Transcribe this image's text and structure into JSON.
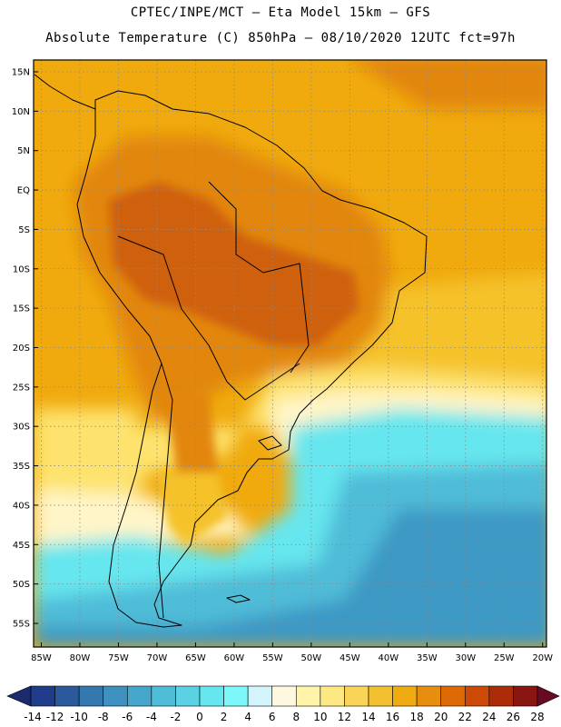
{
  "header": {
    "line1": "CPTEC/INPE/MCT –  Eta Model 15km – GFS",
    "line2": "Absolute Temperature (C) 850hPa – 08/10/2020 12UTC fct=97h"
  },
  "map": {
    "lon_range": [
      -86,
      -19.5
    ],
    "lat_range": [
      -58,
      16.5
    ],
    "lat_ticks": [
      {
        "value": 15,
        "label": "15N"
      },
      {
        "value": 10,
        "label": "10N"
      },
      {
        "value": 5,
        "label": "5N"
      },
      {
        "value": 0,
        "label": "EQ"
      },
      {
        "value": -5,
        "label": "5S"
      },
      {
        "value": -10,
        "label": "10S"
      },
      {
        "value": -15,
        "label": "15S"
      },
      {
        "value": -20,
        "label": "20S"
      },
      {
        "value": -25,
        "label": "25S"
      },
      {
        "value": -30,
        "label": "30S"
      },
      {
        "value": -35,
        "label": "35S"
      },
      {
        "value": -40,
        "label": "40S"
      },
      {
        "value": -45,
        "label": "45S"
      },
      {
        "value": -50,
        "label": "50S"
      },
      {
        "value": -55,
        "label": "55S"
      }
    ],
    "lon_ticks": [
      {
        "value": -85,
        "label": "85W"
      },
      {
        "value": -80,
        "label": "80W"
      },
      {
        "value": -75,
        "label": "75W"
      },
      {
        "value": -70,
        "label": "70W"
      },
      {
        "value": -65,
        "label": "65W"
      },
      {
        "value": -60,
        "label": "60W"
      },
      {
        "value": -55,
        "label": "55W"
      },
      {
        "value": -50,
        "label": "50W"
      },
      {
        "value": -45,
        "label": "45W"
      },
      {
        "value": -40,
        "label": "40W"
      },
      {
        "value": -35,
        "label": "35W"
      },
      {
        "value": -30,
        "label": "30W"
      },
      {
        "value": -25,
        "label": "25W"
      },
      {
        "value": -20,
        "label": "20W"
      }
    ],
    "colorbar": {
      "labels": [
        "-14",
        "-12",
        "-10",
        "-8",
        "-6",
        "-4",
        "-2",
        "0",
        "2",
        "4",
        "6",
        "8",
        "10",
        "12",
        "14",
        "16",
        "18",
        "20",
        "22",
        "24",
        "26",
        "28"
      ],
      "under_color": "#1c2a70",
      "over_color": "#6a0a22",
      "colors": [
        "#1f3c8a",
        "#2a5a9c",
        "#3478b0",
        "#3e90bf",
        "#46a6cc",
        "#4fbcd8",
        "#5ad2e4",
        "#66e6ee",
        "#7cf8f8",
        "#d2f4fa",
        "#fff8e0",
        "#fff4a8",
        "#fde884",
        "#f8d458",
        "#f2c030",
        "#efac12",
        "#e88e0e",
        "#de6a06",
        "#cc4a06",
        "#ad2c08",
        "#8a1612"
      ]
    },
    "colors": {
      "warm_core": "#cf610e",
      "warm": "#e2860a",
      "mid": "#f0aa0e",
      "mild": "#f5c22a",
      "pale": "#fde36e",
      "cream": "#fff5c8",
      "cyan": "#66e6ee",
      "sky": "#4fbcd8",
      "blue": "#3e98c4",
      "coast_line": "#000000",
      "grid_line": "#8a8a8a"
    }
  }
}
